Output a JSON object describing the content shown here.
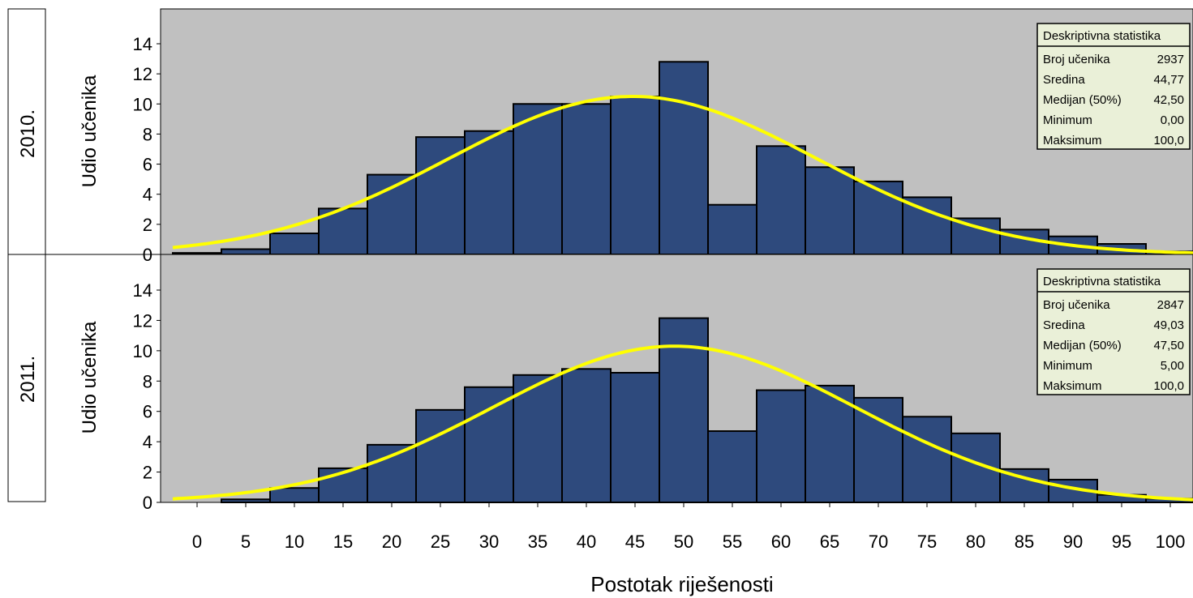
{
  "chart_data": {
    "type": "bar",
    "xlabel": "Postotak riješenosti",
    "ylabel": "Udio učenika",
    "x_ticks": [
      "0",
      "5",
      "10",
      "15",
      "20",
      "25",
      "30",
      "35",
      "40",
      "45",
      "50",
      "55",
      "60",
      "65",
      "70",
      "75",
      "80",
      "85",
      "90",
      "95",
      "100"
    ],
    "y_ticks": [
      "0",
      "2",
      "4",
      "6",
      "8",
      "10",
      "12",
      "14"
    ],
    "ylim": [
      0,
      15
    ],
    "bin_width": 5,
    "bin_centers": [
      0,
      5,
      10,
      15,
      20,
      25,
      30,
      35,
      40,
      45,
      50,
      55,
      60,
      65,
      70,
      75,
      80,
      85,
      90,
      95,
      100
    ],
    "panels": [
      {
        "strip_label": "2010.",
        "values": [
          0.1,
          0.35,
          1.4,
          3.05,
          5.3,
          7.8,
          8.2,
          10.0,
          10.0,
          10.5,
          12.8,
          3.3,
          7.2,
          5.8,
          4.85,
          3.8,
          2.4,
          1.65,
          1.2,
          0.7,
          0.2
        ],
        "curve": {
          "mean": 44.77,
          "sd": 18.9,
          "peak": 10.5
        },
        "stats": {
          "title": "Deskriptivna statistika",
          "rows": [
            {
              "label": "Broj učenika",
              "value": "2937"
            },
            {
              "label": "Sredina",
              "value": "44,77"
            },
            {
              "label": "Medijan (50%)",
              "value": "42,50"
            },
            {
              "label": "Minimum",
              "value": "0,00"
            },
            {
              "label": "Maksimum",
              "value": "100,0"
            }
          ]
        }
      },
      {
        "strip_label": "2011.",
        "values": [
          0,
          0.2,
          0.95,
          2.25,
          3.8,
          6.1,
          7.6,
          8.4,
          8.8,
          8.55,
          12.15,
          4.7,
          7.4,
          7.7,
          6.9,
          5.65,
          4.55,
          2.2,
          1.5,
          0.5,
          0.25
        ],
        "curve": {
          "mean": 49.03,
          "sd": 18.7,
          "peak": 10.3
        },
        "stats": {
          "title": "Deskriptivna statistika",
          "rows": [
            {
              "label": "Broj učenika",
              "value": "2847"
            },
            {
              "label": "Sredina",
              "value": "49,03"
            },
            {
              "label": "Medijan (50%)",
              "value": "47,50"
            },
            {
              "label": "Minimum",
              "value": "5,00"
            },
            {
              "label": "Maksimum",
              "value": "100,0"
            }
          ]
        }
      }
    ],
    "colors": {
      "plot_bg": "#c0c0c0",
      "bar": "#2e4a7d",
      "curve": "#ffff00",
      "stats_bg": "#eaf0d8"
    }
  }
}
